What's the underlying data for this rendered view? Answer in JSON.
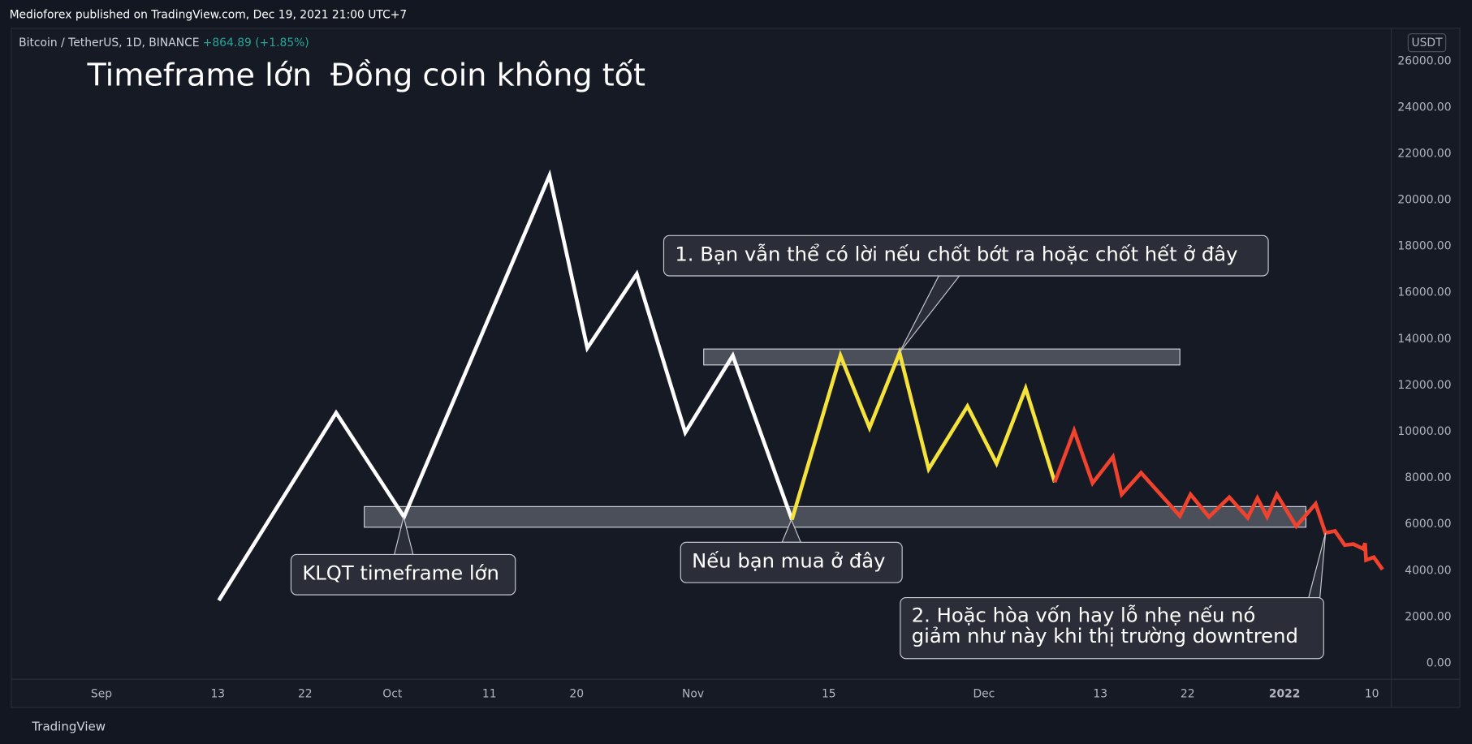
{
  "header": {
    "published": "Medioforex published on TradingView.com, Dec 19, 2021 21:00 UTC+7",
    "symbol": "Bitcoin / TetherUS, 1D, BINANCE",
    "change": "+864.89 (+1.85%)",
    "currency": "USDT",
    "brand": "TradingView"
  },
  "chart_data": {
    "type": "line",
    "title": "Timeframe lớn",
    "subtitle": "Đồng coin không tốt",
    "xlim": [
      -9.3,
      133.0
    ],
    "ylim": [
      -690,
      27420
    ],
    "xticks": [
      {
        "value": 0,
        "label": "Sep"
      },
      {
        "value": 12,
        "label": "13"
      },
      {
        "value": 21,
        "label": "22"
      },
      {
        "value": 30,
        "label": "Oct"
      },
      {
        "value": 40,
        "label": "11"
      },
      {
        "value": 49,
        "label": "20"
      },
      {
        "value": 61,
        "label": "Nov"
      },
      {
        "value": 75,
        "label": "15"
      },
      {
        "value": 91,
        "label": "Dec"
      },
      {
        "value": 103,
        "label": "13"
      },
      {
        "value": 112,
        "label": "22"
      },
      {
        "value": 122,
        "label": "2022"
      },
      {
        "value": 131,
        "label": "10"
      }
    ],
    "yticks": [
      {
        "value": 0,
        "label": "0.00"
      },
      {
        "value": 2000,
        "label": "2000.00"
      },
      {
        "value": 4000,
        "label": "4000.00"
      },
      {
        "value": 6000,
        "label": "6000.00"
      },
      {
        "value": 8000,
        "label": "8000.00"
      },
      {
        "value": 10000,
        "label": "10000.00"
      },
      {
        "value": 12000,
        "label": "12000.00"
      },
      {
        "value": 14000,
        "label": "14000.00"
      },
      {
        "value": 16000,
        "label": "16000.00"
      },
      {
        "value": 18000,
        "label": "18000.00"
      },
      {
        "value": 20000,
        "label": "20000.00"
      },
      {
        "value": 22000,
        "label": "22000.00"
      },
      {
        "value": 24000,
        "label": "24000.00"
      },
      {
        "value": 26000,
        "label": "26000.00"
      }
    ],
    "zones": [
      {
        "x": [
          62.1,
          111.2
        ],
        "y": [
          12879,
          13568
        ]
      },
      {
        "x": [
          27.1,
          124.2
        ],
        "y": [
          5873,
          6764
        ]
      }
    ],
    "series": [
      {
        "color": "#ffffff",
        "x": [
          12.1,
          24.2,
          31.2,
          46.2,
          50.1,
          55.2,
          60.2,
          65.1,
          71.2
        ],
        "values": [
          2714,
          10814,
          6318,
          21061,
          13609,
          16809,
          9964,
          13285,
          6197
        ]
      },
      {
        "color": "#f5e33b",
        "x": [
          71.2,
          76.2,
          79.2,
          82.3,
          85.3,
          89.3,
          92.3,
          95.3,
          98.3
        ],
        "values": [
          6197,
          13285,
          10166,
          13406,
          8384,
          11098,
          8627,
          11867,
          7817
        ]
      },
      {
        "color": "#f0422d",
        "x": [
          98.3,
          100.3,
          102.2,
          104.3,
          105.2,
          107.2,
          111.2,
          112.3,
          114.2,
          116.3,
          118.2,
          119.2,
          120.2,
          121.2,
          123.2,
          125.2,
          126.2,
          127.2,
          128.2,
          129.1,
          130.1,
          130.3,
          130.4,
          131.2,
          132.1
        ],
        "values": [
          7817,
          10044,
          7776,
          8910,
          7290,
          8222,
          6359,
          7290,
          6318,
          7169,
          6278,
          7128,
          6318,
          7290,
          5913,
          6885,
          5630,
          5711,
          5103,
          5144,
          4941,
          5184,
          4455,
          4577,
          4050
        ]
      }
    ],
    "annotations": [
      "1. Bạn vẫn thể có lời nếu chốt bớt ra hoặc chốt hết ở đây",
      "KLQT timeframe lớn",
      "Nếu bạn mua ở đây",
      "2. Hoặc hòa vốn hay lỗ nhẹ nếu nó",
      "giảm như này khi thị trường downtrend"
    ]
  }
}
